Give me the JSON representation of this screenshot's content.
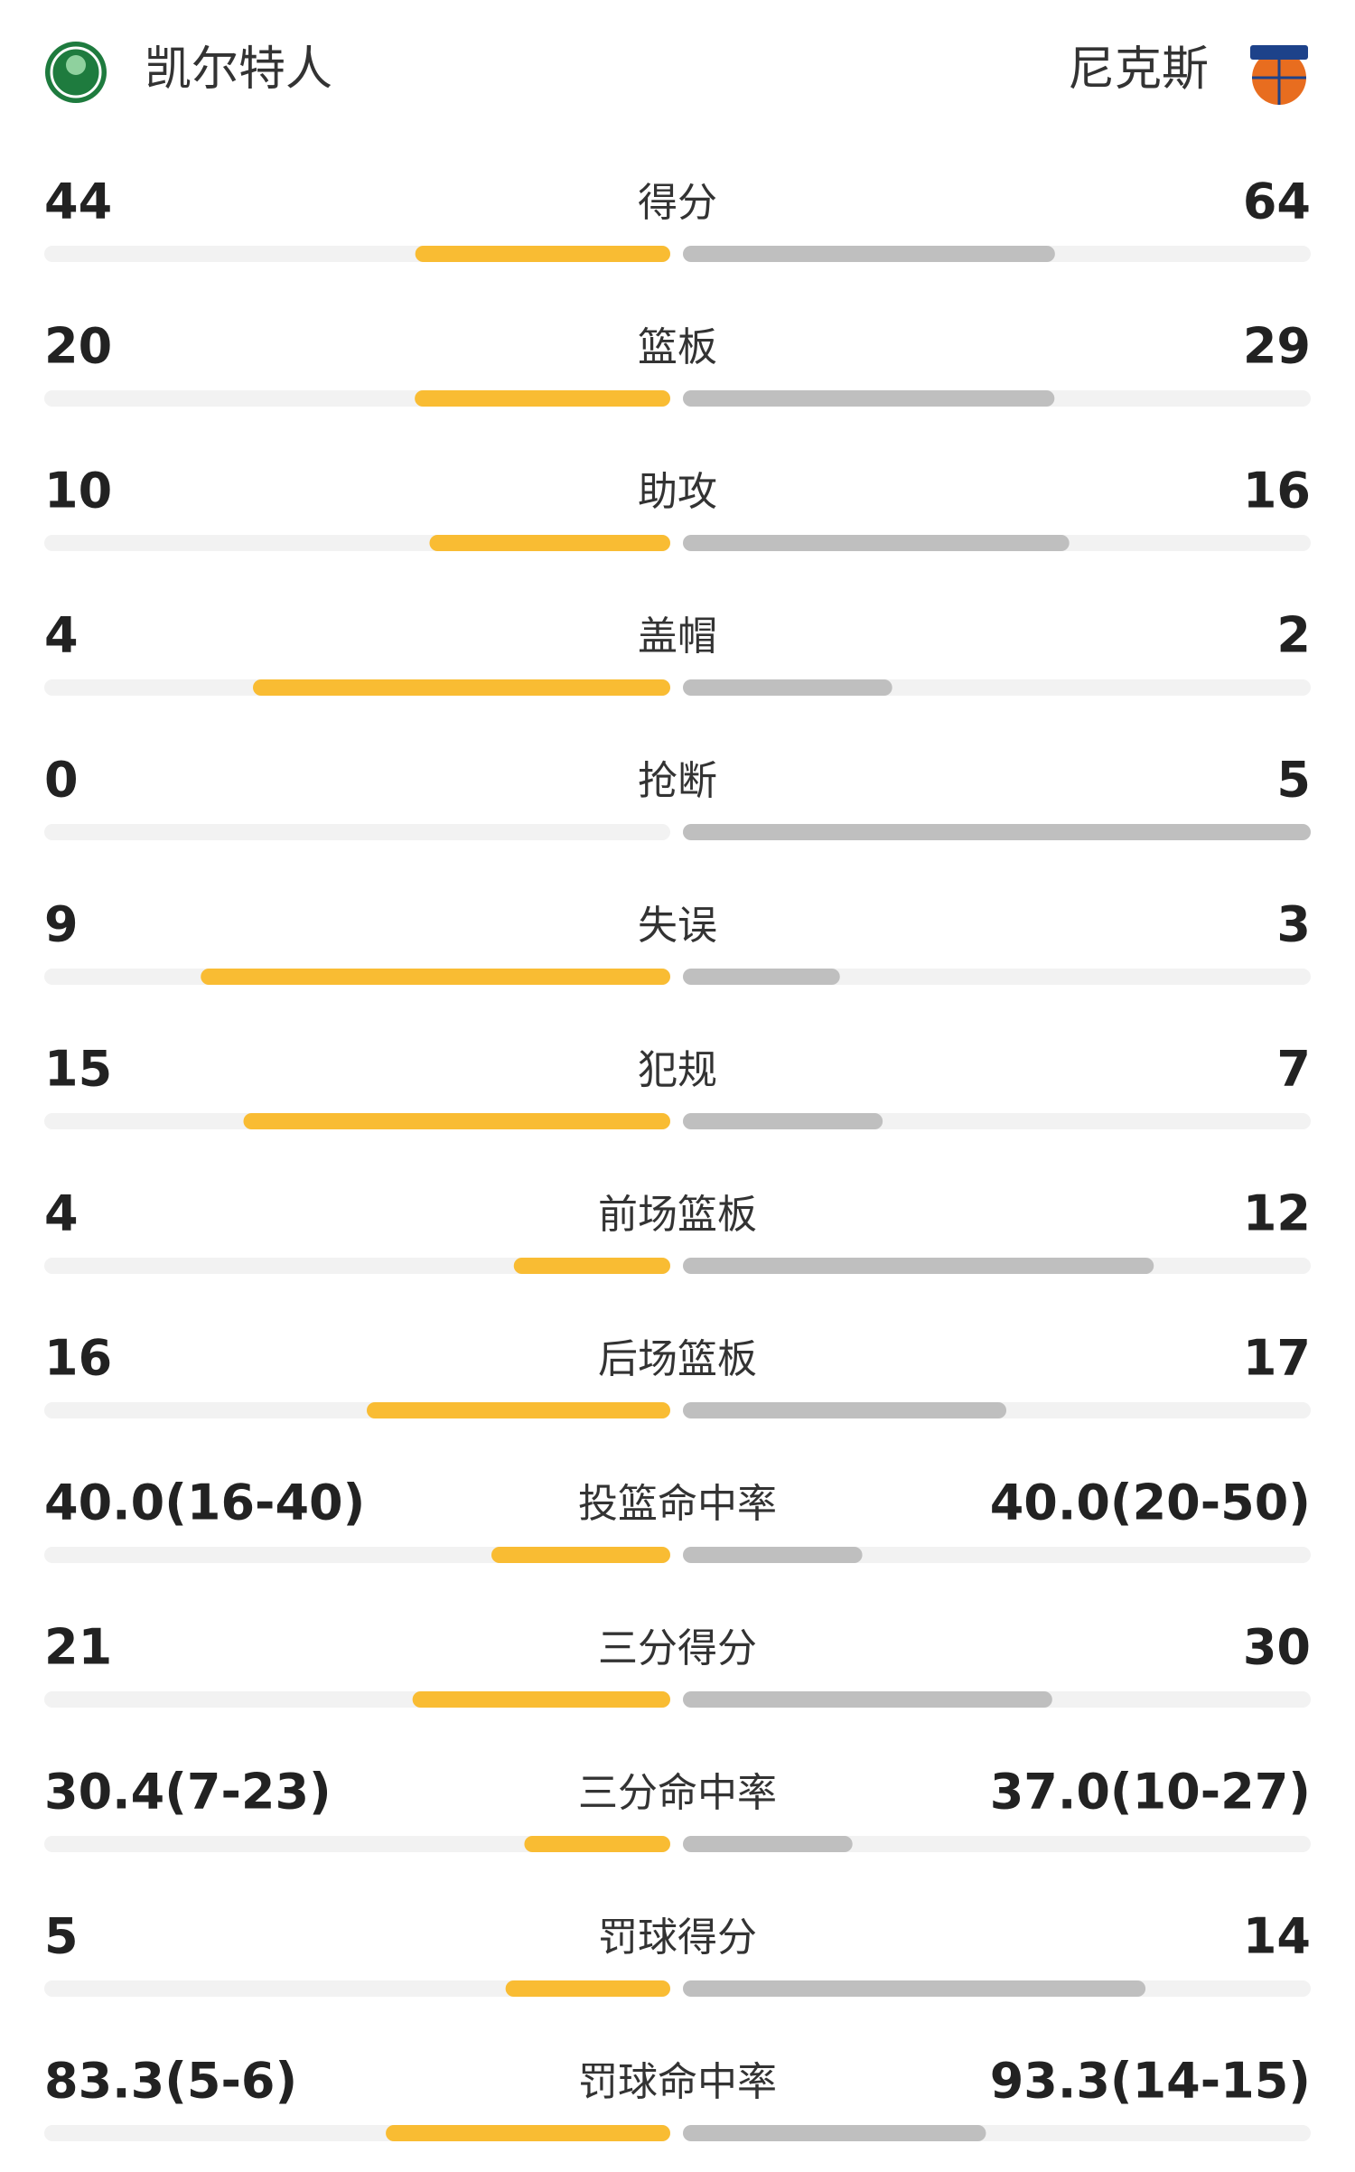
{
  "teams": {
    "home": {
      "name": "凯尔特人"
    },
    "away": {
      "name": "尼克斯"
    }
  },
  "stats": [
    {
      "label": "得分",
      "home": 44,
      "away": 64
    },
    {
      "label": "篮板",
      "home": 20,
      "away": 29
    },
    {
      "label": "助攻",
      "home": 10,
      "away": 16
    },
    {
      "label": "盖帽",
      "home": 4,
      "away": 2
    },
    {
      "label": "抢断",
      "home": 0,
      "away": 5
    },
    {
      "label": "失误",
      "home": 9,
      "away": 3
    },
    {
      "label": "犯规",
      "home": 15,
      "away": 7
    },
    {
      "label": "前场篮板",
      "home": 4,
      "away": 12
    },
    {
      "label": "后场篮板",
      "home": 16,
      "away": 17
    },
    {
      "label": "投篮命中率",
      "home": 40.0,
      "away": 40.0,
      "home_label": "40.0(16-40)",
      "away_label": "40.0(20-50)"
    },
    {
      "label": "三分得分",
      "home": 21,
      "away": 30
    },
    {
      "label": "三分命中率",
      "home": 30.4,
      "away": 37.0,
      "home_label": "30.4(7-23)",
      "away_label": "37.0(10-27)"
    },
    {
      "label": "罚球得分",
      "home": 5,
      "away": 14
    },
    {
      "label": "罚球命中率",
      "home": 83.3,
      "away": 93.3,
      "home_label": "83.3(5-6)",
      "away_label": "93.3(14-15)"
    }
  ]
}
